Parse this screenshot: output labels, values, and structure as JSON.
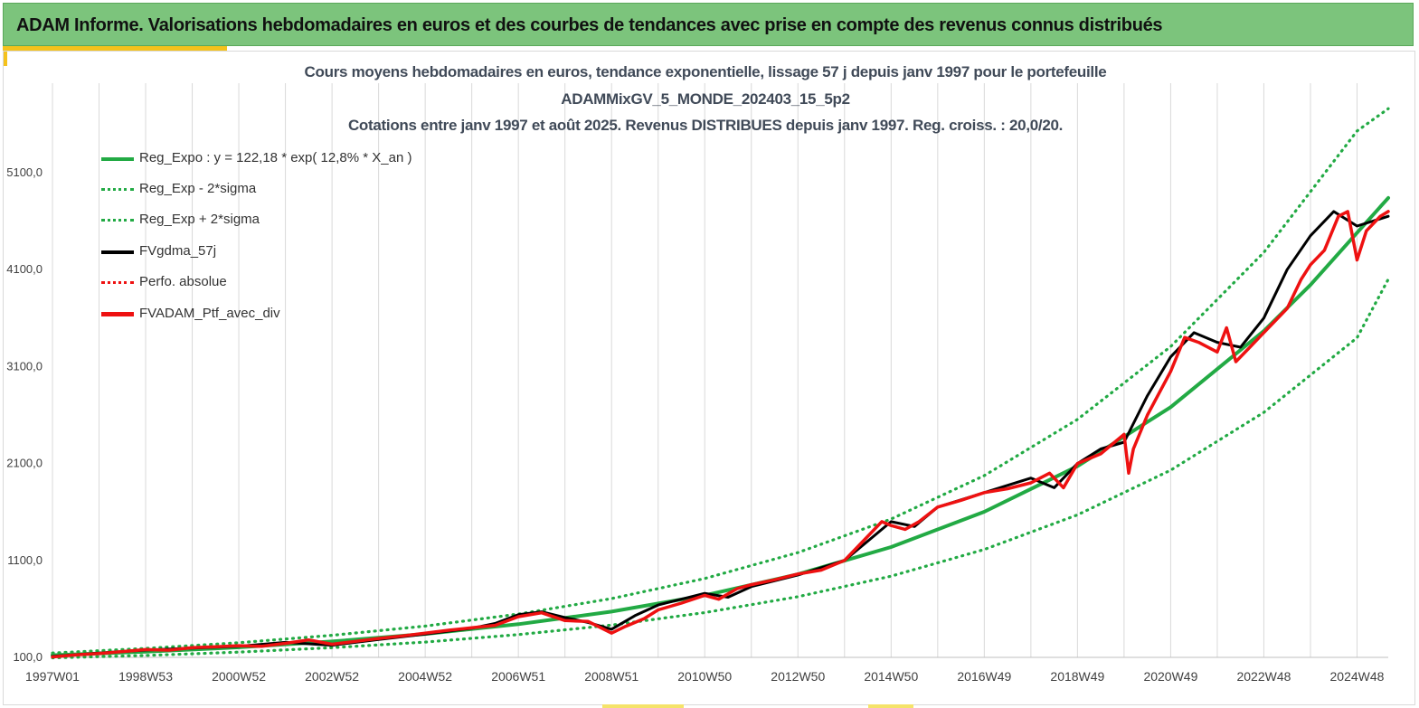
{
  "header": {
    "title": "ADAM Informe. Valorisations hebdomadaires en euros et des courbes de tendances avec prise en compte des revenus connus distribués"
  },
  "chart_data": {
    "type": "line",
    "title_lines": [
      "Cours moyens hebdomadaires  en euros, tendance exponentielle, lissage 57 j depuis janv 1997 pour le portefeuille",
      "ADAMMixGV_5_MONDE_202403_15_5p2",
      "Cotations  entre janv 1997 et août 2025. Revenus DISTRIBUES depuis janv 1997. Reg. croiss. : 20,0/20."
    ],
    "xlabel": "",
    "ylabel": "",
    "ylim": [
      100,
      5100
    ],
    "y_ticks": [
      "100,0",
      "1100,0",
      "2100,0",
      "3100,0",
      "4100,0",
      "5100,0"
    ],
    "x_tick_labels": [
      "1997W01",
      "1998W53",
      "2000W52",
      "2002W52",
      "2004W52",
      "2006W51",
      "2008W51",
      "2010W50",
      "2012W50",
      "2014W50",
      "2016W49",
      "2018W49",
      "2020W49",
      "2022W48",
      "2024W48"
    ],
    "x_tick_years": [
      1997.0,
      1999.0,
      2001.0,
      2003.0,
      2005.0,
      2007.0,
      2009.0,
      2011.0,
      2013.0,
      2015.0,
      2017.0,
      2019.0,
      2021.0,
      2023.0,
      2025.0
    ],
    "x_range": [
      1997.0,
      2025.67
    ],
    "grid": "vertical",
    "legend_position": "top-left",
    "series": [
      {
        "name": "Reg_Expo : y = 122,18 * exp( 12,8% *  X_an )",
        "style": "solid",
        "color": "#22aa44",
        "x": [
          1997,
          1999,
          2001,
          2003,
          2005,
          2007,
          2009,
          2011,
          2013,
          2015,
          2017,
          2019,
          2021,
          2023,
          2024,
          2025,
          2025.67
        ],
        "y": [
          122,
          158,
          204,
          264,
          342,
          442,
          572,
          740,
          957,
          1238,
          1602,
          2072,
          2681,
          3468,
          3942,
          4481,
          4840
        ]
      },
      {
        "name": "Reg_Exp - 2*sigma",
        "style": "dotted",
        "color": "#22aa44",
        "x": [
          1997,
          1999,
          2001,
          2003,
          2005,
          2007,
          2009,
          2011,
          2013,
          2015,
          2017,
          2019,
          2021,
          2023,
          2025,
          2025.67
        ],
        "y": [
          95,
          120,
          154,
          200,
          258,
          335,
          433,
          562,
          726,
          938,
          1213,
          1570,
          2031,
          2627,
          3398,
          4000
        ]
      },
      {
        "name": "Reg_Exp + 2*sigma",
        "style": "dotted",
        "color": "#22aa44",
        "x": [
          1997,
          1999,
          2001,
          2003,
          2005,
          2007,
          2009,
          2011,
          2013,
          2015,
          2017,
          2019,
          2021,
          2023,
          2025,
          2025.67
        ],
        "y": [
          145,
          192,
          251,
          328,
          423,
          547,
          706,
          913,
          1181,
          1527,
          1975,
          2555,
          3306,
          4277,
          5530,
          5760
        ]
      },
      {
        "name": "FVgdma_57j",
        "style": "solid",
        "color": "#000000",
        "x": [
          1997.0,
          1998.0,
          1999.0,
          2000.0,
          2001.0,
          2002.0,
          2003.0,
          2004.0,
          2005.0,
          2006.0,
          2006.5,
          2007.0,
          2007.5,
          2008.0,
          2008.5,
          2009.0,
          2009.5,
          2010.0,
          2011.0,
          2011.5,
          2012.0,
          2013.0,
          2014.0,
          2014.5,
          2015.0,
          2015.5,
          2016.0,
          2017.0,
          2018.0,
          2018.5,
          2019.0,
          2019.5,
          2020.0,
          2020.5,
          2021.0,
          2021.5,
          2022.0,
          2022.5,
          2023.0,
          2023.5,
          2024.0,
          2024.5,
          2025.0,
          2025.67
        ],
        "y": [
          110,
          145,
          175,
          195,
          215,
          255,
          225,
          285,
          340,
          400,
          450,
          540,
          570,
          510,
          460,
          390,
          530,
          640,
          760,
          720,
          830,
          950,
          1100,
          1300,
          1500,
          1450,
          1650,
          1800,
          1950,
          1850,
          2100,
          2250,
          2320,
          2800,
          3200,
          3450,
          3350,
          3300,
          3600,
          4100,
          4450,
          4700,
          4550,
          4650
        ]
      },
      {
        "name": "Perfo. absolue",
        "style": "dotted",
        "color": "#ee1111",
        "x": [],
        "y": []
      },
      {
        "name": "FVADAM_Ptf_avec_div",
        "style": "solid",
        "color": "#ee1111",
        "x": [
          1997.0,
          1997.5,
          1998.0,
          1998.5,
          1999.0,
          1999.5,
          2000.0,
          2000.5,
          2001.0,
          2001.5,
          2002.0,
          2002.5,
          2003.0,
          2003.5,
          2004.0,
          2004.5,
          2005.0,
          2005.5,
          2006.0,
          2006.5,
          2007.0,
          2007.5,
          2008.0,
          2008.5,
          2009.0,
          2009.3,
          2009.7,
          2010.0,
          2010.5,
          2011.0,
          2011.3,
          2011.7,
          2012.0,
          2012.5,
          2013.0,
          2013.5,
          2014.0,
          2014.5,
          2014.8,
          2015.0,
          2015.3,
          2015.6,
          2016.0,
          2016.5,
          2017.0,
          2017.5,
          2018.0,
          2018.4,
          2018.7,
          2019.0,
          2019.5,
          2020.0,
          2020.1,
          2020.2,
          2020.5,
          2021.0,
          2021.3,
          2021.6,
          2022.0,
          2022.2,
          2022.4,
          2022.7,
          2023.0,
          2023.5,
          2023.8,
          2024.0,
          2024.3,
          2024.6,
          2024.8,
          2025.0,
          2025.2,
          2025.5,
          2025.67
        ],
        "y": [
          105,
          125,
          140,
          160,
          180,
          175,
          200,
          210,
          220,
          215,
          245,
          280,
          235,
          265,
          295,
          320,
          350,
          380,
          405,
          430,
          520,
          560,
          480,
          470,
          350,
          420,
          500,
          590,
          660,
          740,
          700,
          810,
          850,
          900,
          960,
          1000,
          1100,
          1350,
          1500,
          1460,
          1420,
          1500,
          1650,
          1720,
          1800,
          1840,
          1900,
          2000,
          1850,
          2100,
          2200,
          2400,
          2000,
          2250,
          2600,
          3050,
          3400,
          3350,
          3250,
          3500,
          3150,
          3300,
          3450,
          3700,
          4000,
          4150,
          4300,
          4650,
          4700,
          4200,
          4500,
          4650,
          4700
        ]
      }
    ]
  }
}
